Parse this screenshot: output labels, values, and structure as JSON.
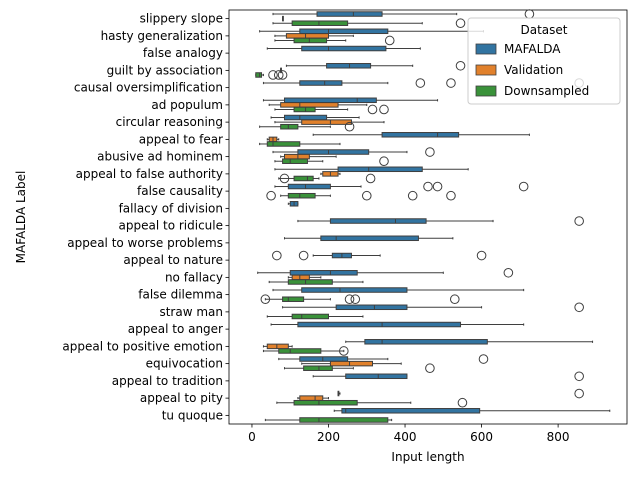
{
  "chart_data": {
    "type": "boxplot",
    "orientation": "horizontal",
    "xlabel": "Input length",
    "ylabel": "MAFALDA Label",
    "xlim": [
      -60,
      980
    ],
    "xticks": [
      0,
      200,
      400,
      600,
      800
    ],
    "legend": {
      "title": "Dataset",
      "position": "top-right",
      "entries": [
        {
          "name": "MAFALDA",
          "color": "#3274a1"
        },
        {
          "name": "Validation",
          "color": "#e1812c"
        },
        {
          "name": "Downsampled",
          "color": "#3a923a"
        }
      ]
    },
    "categories": [
      "slippery slope",
      "hasty generalization",
      "false analogy",
      "guilt by association",
      "causal oversimplification",
      "ad populum",
      "circular reasoning",
      "appeal to fear",
      "abusive ad hominem",
      "appeal to false authority",
      "false causality",
      "fallacy of division",
      "appeal to ridicule",
      "appeal to worse problems",
      "appeal to nature",
      "no fallacy",
      "false dilemma",
      "straw man",
      "appeal to anger",
      "appeal to positive emotion",
      "equivocation",
      "appeal to tradition",
      "appeal to pity",
      "tu quoque"
    ],
    "series": [
      {
        "name": "MAFALDA",
        "color": "#3274a1",
        "boxes": [
          {
            "category": "slippery slope",
            "whislo": 55,
            "q1": 170,
            "med": 265,
            "q3": 340,
            "whishi": 535,
            "fliers": [
              725
            ]
          },
          {
            "category": "hasty generalization",
            "whislo": 20,
            "q1": 125,
            "med": 200,
            "q3": 355,
            "whishi": 605,
            "fliers": []
          },
          {
            "category": "false analogy",
            "whislo": 40,
            "q1": 130,
            "med": 200,
            "q3": 350,
            "whishi": 440,
            "fliers": []
          },
          {
            "category": "guilt by association",
            "whislo": 90,
            "q1": 195,
            "med": 255,
            "q3": 310,
            "whishi": 420,
            "fliers": [
              545
            ]
          },
          {
            "category": "causal oversimplification",
            "whislo": 30,
            "q1": 125,
            "med": 190,
            "q3": 235,
            "whishi": 355,
            "fliers": [
              440,
              520,
              855
            ]
          },
          {
            "category": "ad populum",
            "whislo": 30,
            "q1": 85,
            "med": 275,
            "q3": 325,
            "whishi": 485,
            "fliers": []
          },
          {
            "category": "circular reasoning",
            "whislo": 50,
            "q1": 85,
            "med": 125,
            "q3": 195,
            "whishi": 280,
            "fliers": []
          },
          {
            "category": "appeal to fear",
            "whislo": 160,
            "q1": 340,
            "med": 485,
            "q3": 540,
            "whishi": 725,
            "fliers": []
          },
          {
            "category": "abusive ad hominem",
            "whislo": 55,
            "q1": 120,
            "med": 200,
            "q3": 305,
            "whishi": 405,
            "fliers": [
              465
            ]
          },
          {
            "category": "appeal to false authority",
            "whislo": 60,
            "q1": 225,
            "med": 305,
            "q3": 445,
            "whishi": 565,
            "fliers": []
          },
          {
            "category": "false causality",
            "whislo": 60,
            "q1": 95,
            "med": 140,
            "q3": 205,
            "whishi": 285,
            "fliers": [
              460,
              485,
              710
            ]
          },
          {
            "category": "fallacy of division",
            "whislo": 95,
            "q1": 100,
            "med": 110,
            "q3": 120,
            "whishi": 120,
            "fliers": []
          },
          {
            "category": "appeal to ridicule",
            "whislo": 120,
            "q1": 205,
            "med": 375,
            "q3": 455,
            "whishi": 630,
            "fliers": [
              855
            ]
          },
          {
            "category": "appeal to worse problems",
            "whislo": 85,
            "q1": 180,
            "med": 220,
            "q3": 435,
            "whishi": 525,
            "fliers": []
          },
          {
            "category": "appeal to nature",
            "whislo": 160,
            "q1": 210,
            "med": 235,
            "q3": 260,
            "whishi": 335,
            "fliers": [
              65,
              135,
              600
            ]
          },
          {
            "category": "no fallacy",
            "whislo": 15,
            "q1": 100,
            "med": 205,
            "q3": 275,
            "whishi": 500,
            "fliers": [
              670
            ]
          },
          {
            "category": "false dilemma",
            "whislo": 55,
            "q1": 130,
            "med": 230,
            "q3": 405,
            "whishi": 710,
            "fliers": []
          },
          {
            "category": "straw man",
            "whislo": 80,
            "q1": 220,
            "med": 320,
            "q3": 405,
            "whishi": 600,
            "fliers": [
              855
            ]
          },
          {
            "category": "appeal to anger",
            "whislo": 50,
            "q1": 120,
            "med": 340,
            "q3": 545,
            "whishi": 710,
            "fliers": []
          },
          {
            "category": "appeal to positive emotion",
            "whislo": 245,
            "q1": 295,
            "med": 340,
            "q3": 615,
            "whishi": 890,
            "fliers": []
          },
          {
            "category": "equivocation",
            "whislo": 70,
            "q1": 125,
            "med": 185,
            "q3": 250,
            "whishi": 355,
            "fliers": [
              605
            ]
          },
          {
            "category": "appeal to tradition",
            "whislo": 160,
            "q1": 245,
            "med": 330,
            "q3": 405,
            "whishi": 405,
            "fliers": [
              855
            ]
          },
          {
            "category": "appeal to pity",
            "whislo": 225,
            "q1": 225,
            "med": 225,
            "q3": 225,
            "whishi": 230,
            "fliers": [
              855
            ]
          },
          {
            "category": "tu quoque",
            "whislo": 215,
            "q1": 235,
            "med": 245,
            "q3": 595,
            "whishi": 935,
            "fliers": []
          }
        ]
      },
      {
        "name": "Validation",
        "color": "#e1812c",
        "boxes": [
          {
            "category": "slippery slope",
            "whislo": 80,
            "q1": 80,
            "med": 80,
            "q3": 80,
            "whishi": 80,
            "fliers": []
          },
          {
            "category": "hasty generalization",
            "whislo": 60,
            "q1": 90,
            "med": 140,
            "q3": 200,
            "whishi": 265,
            "fliers": []
          },
          {
            "category": "false analogy",
            "whislo": 0,
            "q1": 0,
            "med": 0,
            "q3": 0,
            "whishi": 0,
            "fliers": []
          },
          {
            "category": "guilt by association",
            "whislo": 75,
            "q1": 75,
            "med": 75,
            "q3": 75,
            "whishi": 75,
            "fliers": []
          },
          {
            "category": "causal oversimplification",
            "whislo": 0,
            "q1": 0,
            "med": 0,
            "q3": 0,
            "whishi": 0,
            "fliers": []
          },
          {
            "category": "ad populum",
            "whislo": 45,
            "q1": 75,
            "med": 125,
            "q3": 225,
            "whishi": 300,
            "fliers": []
          },
          {
            "category": "circular reasoning",
            "whislo": 60,
            "q1": 130,
            "med": 205,
            "q3": 260,
            "whishi": 345,
            "fliers": []
          },
          {
            "category": "appeal to fear",
            "whislo": 40,
            "q1": 45,
            "med": 55,
            "q3": 65,
            "whishi": 70,
            "fliers": []
          },
          {
            "category": "abusive ad hominem",
            "whislo": 75,
            "q1": 85,
            "med": 120,
            "q3": 150,
            "whishi": 220,
            "fliers": []
          },
          {
            "category": "appeal to false authority",
            "whislo": 180,
            "q1": 185,
            "med": 205,
            "q3": 225,
            "whishi": 230,
            "fliers": []
          },
          {
            "category": "false causality",
            "whislo": 0,
            "q1": 0,
            "med": 0,
            "q3": 0,
            "whishi": 0,
            "fliers": []
          },
          {
            "category": "fallacy of division",
            "whislo": 0,
            "q1": 0,
            "med": 0,
            "q3": 0,
            "whishi": 0,
            "fliers": []
          },
          {
            "category": "appeal to ridicule",
            "whislo": 0,
            "q1": 0,
            "med": 0,
            "q3": 0,
            "whishi": 0,
            "fliers": []
          },
          {
            "category": "appeal to worse problems",
            "whislo": 0,
            "q1": 0,
            "med": 0,
            "q3": 0,
            "whishi": 0,
            "fliers": []
          },
          {
            "category": "appeal to nature",
            "whislo": 0,
            "q1": 0,
            "med": 0,
            "q3": 0,
            "whishi": 0,
            "fliers": []
          },
          {
            "category": "no fallacy",
            "whislo": 95,
            "q1": 105,
            "med": 125,
            "q3": 150,
            "whishi": 180,
            "fliers": []
          },
          {
            "category": "false dilemma",
            "whislo": 0,
            "q1": 0,
            "med": 0,
            "q3": 0,
            "whishi": 0,
            "fliers": []
          },
          {
            "category": "straw man",
            "whislo": 0,
            "q1": 0,
            "med": 0,
            "q3": 0,
            "whishi": 0,
            "fliers": []
          },
          {
            "category": "appeal to anger",
            "whislo": 0,
            "q1": 0,
            "med": 0,
            "q3": 0,
            "whishi": 0,
            "fliers": []
          },
          {
            "category": "appeal to positive emotion",
            "whislo": 30,
            "q1": 40,
            "med": 65,
            "q3": 95,
            "whishi": 105,
            "fliers": []
          },
          {
            "category": "equivocation",
            "whislo": 130,
            "q1": 205,
            "med": 255,
            "q3": 315,
            "whishi": 390,
            "fliers": []
          },
          {
            "category": "appeal to tradition",
            "whislo": 0,
            "q1": 0,
            "med": 0,
            "q3": 0,
            "whishi": 0,
            "fliers": []
          },
          {
            "category": "appeal to pity",
            "whislo": 120,
            "q1": 125,
            "med": 165,
            "q3": 185,
            "whishi": 200,
            "fliers": []
          },
          {
            "category": "tu quoque",
            "whislo": 0,
            "q1": 0,
            "med": 0,
            "q3": 0,
            "whishi": 0,
            "fliers": []
          }
        ]
      },
      {
        "name": "Downsampled",
        "color": "#3a923a",
        "boxes": [
          {
            "category": "slippery slope",
            "whislo": 55,
            "q1": 105,
            "med": 175,
            "q3": 250,
            "whishi": 445,
            "fliers": [
              545
            ]
          },
          {
            "category": "hasty generalization",
            "whislo": 60,
            "q1": 110,
            "med": 150,
            "q3": 195,
            "whishi": 245,
            "fliers": [
              360
            ]
          },
          {
            "category": "false analogy",
            "whislo": 0,
            "q1": 0,
            "med": 0,
            "q3": 0,
            "whishi": 0,
            "fliers": []
          },
          {
            "category": "guilt by association",
            "whislo": 10,
            "q1": 10,
            "med": 20,
            "q3": 25,
            "whishi": 30,
            "fliers": [
              55,
              70,
              80
            ]
          },
          {
            "category": "causal oversimplification",
            "whislo": 0,
            "q1": 0,
            "med": 0,
            "q3": 0,
            "whishi": 0,
            "fliers": []
          },
          {
            "category": "ad populum",
            "whislo": 60,
            "q1": 110,
            "med": 140,
            "q3": 165,
            "whishi": 250,
            "fliers": [
              315,
              345
            ]
          },
          {
            "category": "circular reasoning",
            "whislo": 20,
            "q1": 75,
            "med": 95,
            "q3": 120,
            "whishi": 205,
            "fliers": [
              255
            ]
          },
          {
            "category": "appeal to fear",
            "whislo": 20,
            "q1": 40,
            "med": 55,
            "q3": 125,
            "whishi": 230,
            "fliers": []
          },
          {
            "category": "abusive ad hominem",
            "whislo": 60,
            "q1": 80,
            "med": 100,
            "q3": 145,
            "whishi": 185,
            "fliers": [
              345
            ]
          },
          {
            "category": "appeal to false authority",
            "whislo": 70,
            "q1": 110,
            "med": 145,
            "q3": 160,
            "whishi": 175,
            "fliers": [
              85,
              310
            ]
          },
          {
            "category": "false causality",
            "whislo": 75,
            "q1": 95,
            "med": 125,
            "q3": 165,
            "whishi": 205,
            "fliers": [
              50,
              300,
              420,
              520
            ]
          },
          {
            "category": "fallacy of division",
            "whislo": 0,
            "q1": 0,
            "med": 0,
            "q3": 0,
            "whishi": 0,
            "fliers": []
          },
          {
            "category": "appeal to ridicule",
            "whislo": 0,
            "q1": 0,
            "med": 0,
            "q3": 0,
            "whishi": 0,
            "fliers": []
          },
          {
            "category": "appeal to worse problems",
            "whislo": 0,
            "q1": 0,
            "med": 0,
            "q3": 0,
            "whishi": 0,
            "fliers": []
          },
          {
            "category": "appeal to nature",
            "whislo": 0,
            "q1": 0,
            "med": 0,
            "q3": 0,
            "whishi": 0,
            "fliers": []
          },
          {
            "category": "no fallacy",
            "whislo": 45,
            "q1": 95,
            "med": 140,
            "q3": 210,
            "whishi": 290,
            "fliers": []
          },
          {
            "category": "false dilemma",
            "whislo": 35,
            "q1": 80,
            "med": 95,
            "q3": 135,
            "whishi": 205,
            "fliers": [
              35,
              255,
              270,
              530
            ]
          },
          {
            "category": "straw man",
            "whislo": 40,
            "q1": 105,
            "med": 130,
            "q3": 200,
            "whishi": 290,
            "fliers": []
          },
          {
            "category": "appeal to anger",
            "whislo": 0,
            "q1": 0,
            "med": 0,
            "q3": 0,
            "whishi": 0,
            "fliers": []
          },
          {
            "category": "appeal to positive emotion",
            "whislo": 30,
            "q1": 70,
            "med": 100,
            "q3": 180,
            "whishi": 240,
            "fliers": [
              240
            ]
          },
          {
            "category": "equivocation",
            "whislo": 85,
            "q1": 135,
            "med": 175,
            "q3": 210,
            "whishi": 265,
            "fliers": [
              465
            ]
          },
          {
            "category": "appeal to tradition",
            "whislo": 0,
            "q1": 0,
            "med": 0,
            "q3": 0,
            "whishi": 0,
            "fliers": []
          },
          {
            "category": "appeal to pity",
            "whislo": 65,
            "q1": 110,
            "med": 175,
            "q3": 275,
            "whishi": 415,
            "fliers": [
              550
            ]
          },
          {
            "category": "tu quoque",
            "whislo": 35,
            "q1": 125,
            "med": 175,
            "q3": 355,
            "whishi": 365,
            "fliers": []
          }
        ]
      }
    ]
  }
}
